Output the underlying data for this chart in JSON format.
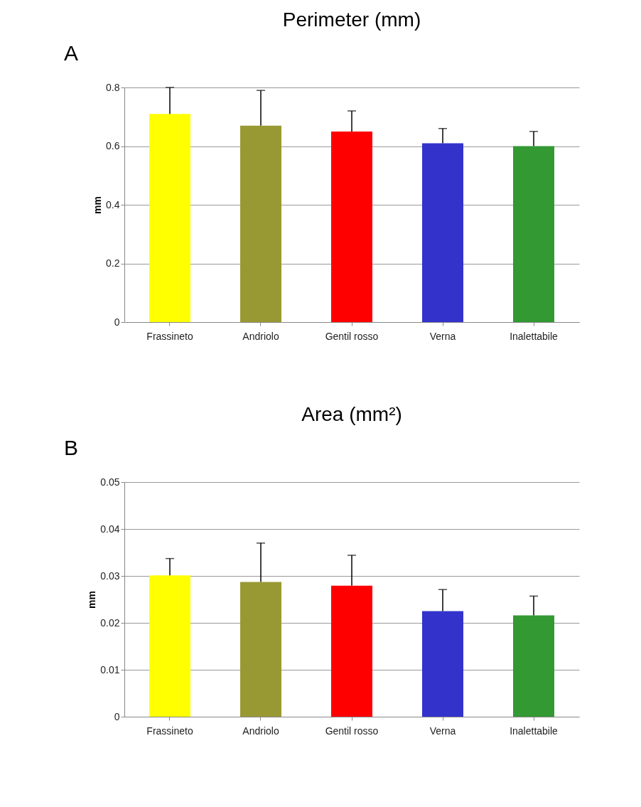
{
  "chart_data": [
    {
      "type": "bar",
      "title": "Perimeter (mm)",
      "ylabel": "mm",
      "annotations": [
        "A"
      ],
      "categories": [
        "Frassineto",
        "Andriolo",
        "Gentil rosso",
        "Verna",
        "Inalettabile"
      ],
      "values": [
        0.71,
        0.67,
        0.65,
        0.61,
        0.6
      ],
      "errors": [
        [
          0.71,
          0.8
        ],
        [
          0.67,
          0.79
        ],
        [
          0.65,
          0.72
        ],
        [
          0.61,
          0.66
        ],
        [
          0.6,
          0.65
        ]
      ],
      "colors": [
        "#ffff00",
        "#999933",
        "#ff0000",
        "#3333cc",
        "#339933"
      ],
      "ylim": [
        0,
        0.8
      ],
      "yticks": [
        0,
        0.2,
        0.4,
        0.6,
        0.8
      ],
      "grid": "y",
      "legend": false
    },
    {
      "type": "bar",
      "title": "Area (mm²)",
      "ylabel": "mm",
      "annotations": [
        "B"
      ],
      "categories": [
        "Frassineto",
        "Andriolo",
        "Gentil rosso",
        "Verna",
        "Inalettabile"
      ],
      "values": [
        0.0301,
        0.0287,
        0.0279,
        0.0225,
        0.0216
      ],
      "errors": [
        [
          0.0301,
          0.0337
        ],
        [
          0.0287,
          0.037
        ],
        [
          0.0279,
          0.0344
        ],
        [
          0.0225,
          0.0271
        ],
        [
          0.0216,
          0.0257
        ]
      ],
      "colors": [
        "#ffff00",
        "#999933",
        "#ff0000",
        "#3333cc",
        "#339933"
      ],
      "ylim": [
        0,
        0.05
      ],
      "yticks": [
        0,
        0.01,
        0.02,
        0.03,
        0.04,
        0.05
      ],
      "grid": "y",
      "legend": false
    }
  ]
}
